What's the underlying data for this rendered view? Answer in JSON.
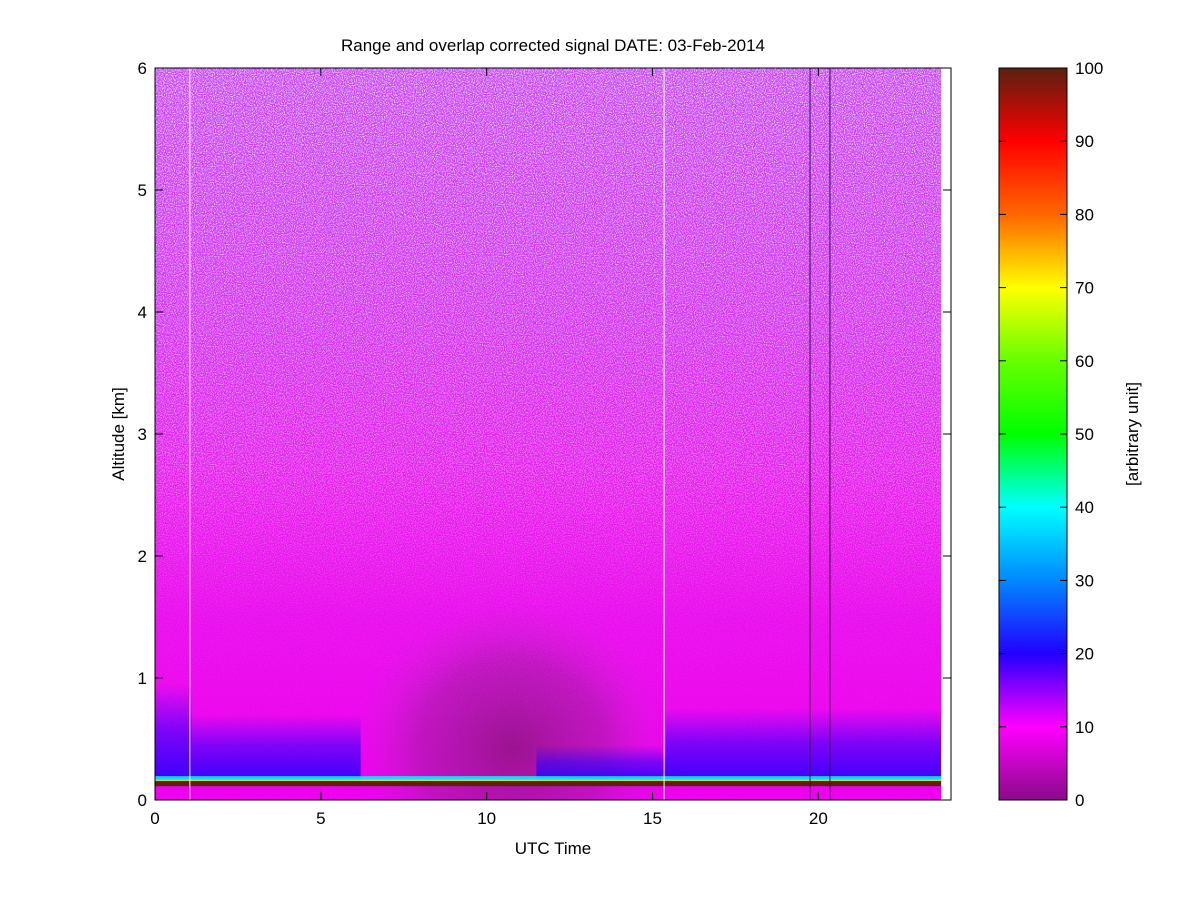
{
  "chart_data": {
    "type": "heatmap",
    "title": "Range and overlap corrected signal DATE: 03-Feb-2014",
    "xlabel": "UTC Time",
    "ylabel": "Altitude [km]",
    "xlim": [
      0,
      24
    ],
    "ylim": [
      0,
      6
    ],
    "x_ticks": [
      0,
      5,
      10,
      15,
      20
    ],
    "y_ticks": [
      0,
      1,
      2,
      3,
      4,
      5,
      6
    ],
    "colorbar": {
      "label": "[arbitrary unit]",
      "range": [
        0,
        100
      ],
      "ticks": [
        0,
        10,
        20,
        30,
        40,
        50,
        60,
        70,
        80,
        90,
        100
      ],
      "stops": [
        {
          "value": 0,
          "color": "#8a0a8a"
        },
        {
          "value": 10,
          "color": "#ff00ff"
        },
        {
          "value": 20,
          "color": "#2200ff"
        },
        {
          "value": 30,
          "color": "#0088ff"
        },
        {
          "value": 40,
          "color": "#00ffff"
        },
        {
          "value": 50,
          "color": "#00ff00"
        },
        {
          "value": 60,
          "color": "#66ff00"
        },
        {
          "value": 70,
          "color": "#ffff00"
        },
        {
          "value": 80,
          "color": "#ff6600"
        },
        {
          "value": 90,
          "color": "#ff0000"
        },
        {
          "value": 100,
          "color": "#5a2010"
        }
      ]
    },
    "data_end_time": 23.7,
    "ground_signal_altitude_km": 0.13,
    "boundary_layer": [
      {
        "time_start": 0,
        "time_end": 1.1,
        "top_km": 0.95
      },
      {
        "time_start": 1.1,
        "time_end": 6.2,
        "top_km": 0.7
      },
      {
        "time_start": 6.2,
        "time_end": 11.5,
        "top_km": 0.2
      },
      {
        "time_start": 11.5,
        "time_end": 15.4,
        "top_km": 0.45
      },
      {
        "time_start": 15.4,
        "time_end": 23.7,
        "top_km": 0.75
      }
    ],
    "gaps_utc": [
      1.05,
      15.35,
      19.75,
      20.35
    ]
  }
}
